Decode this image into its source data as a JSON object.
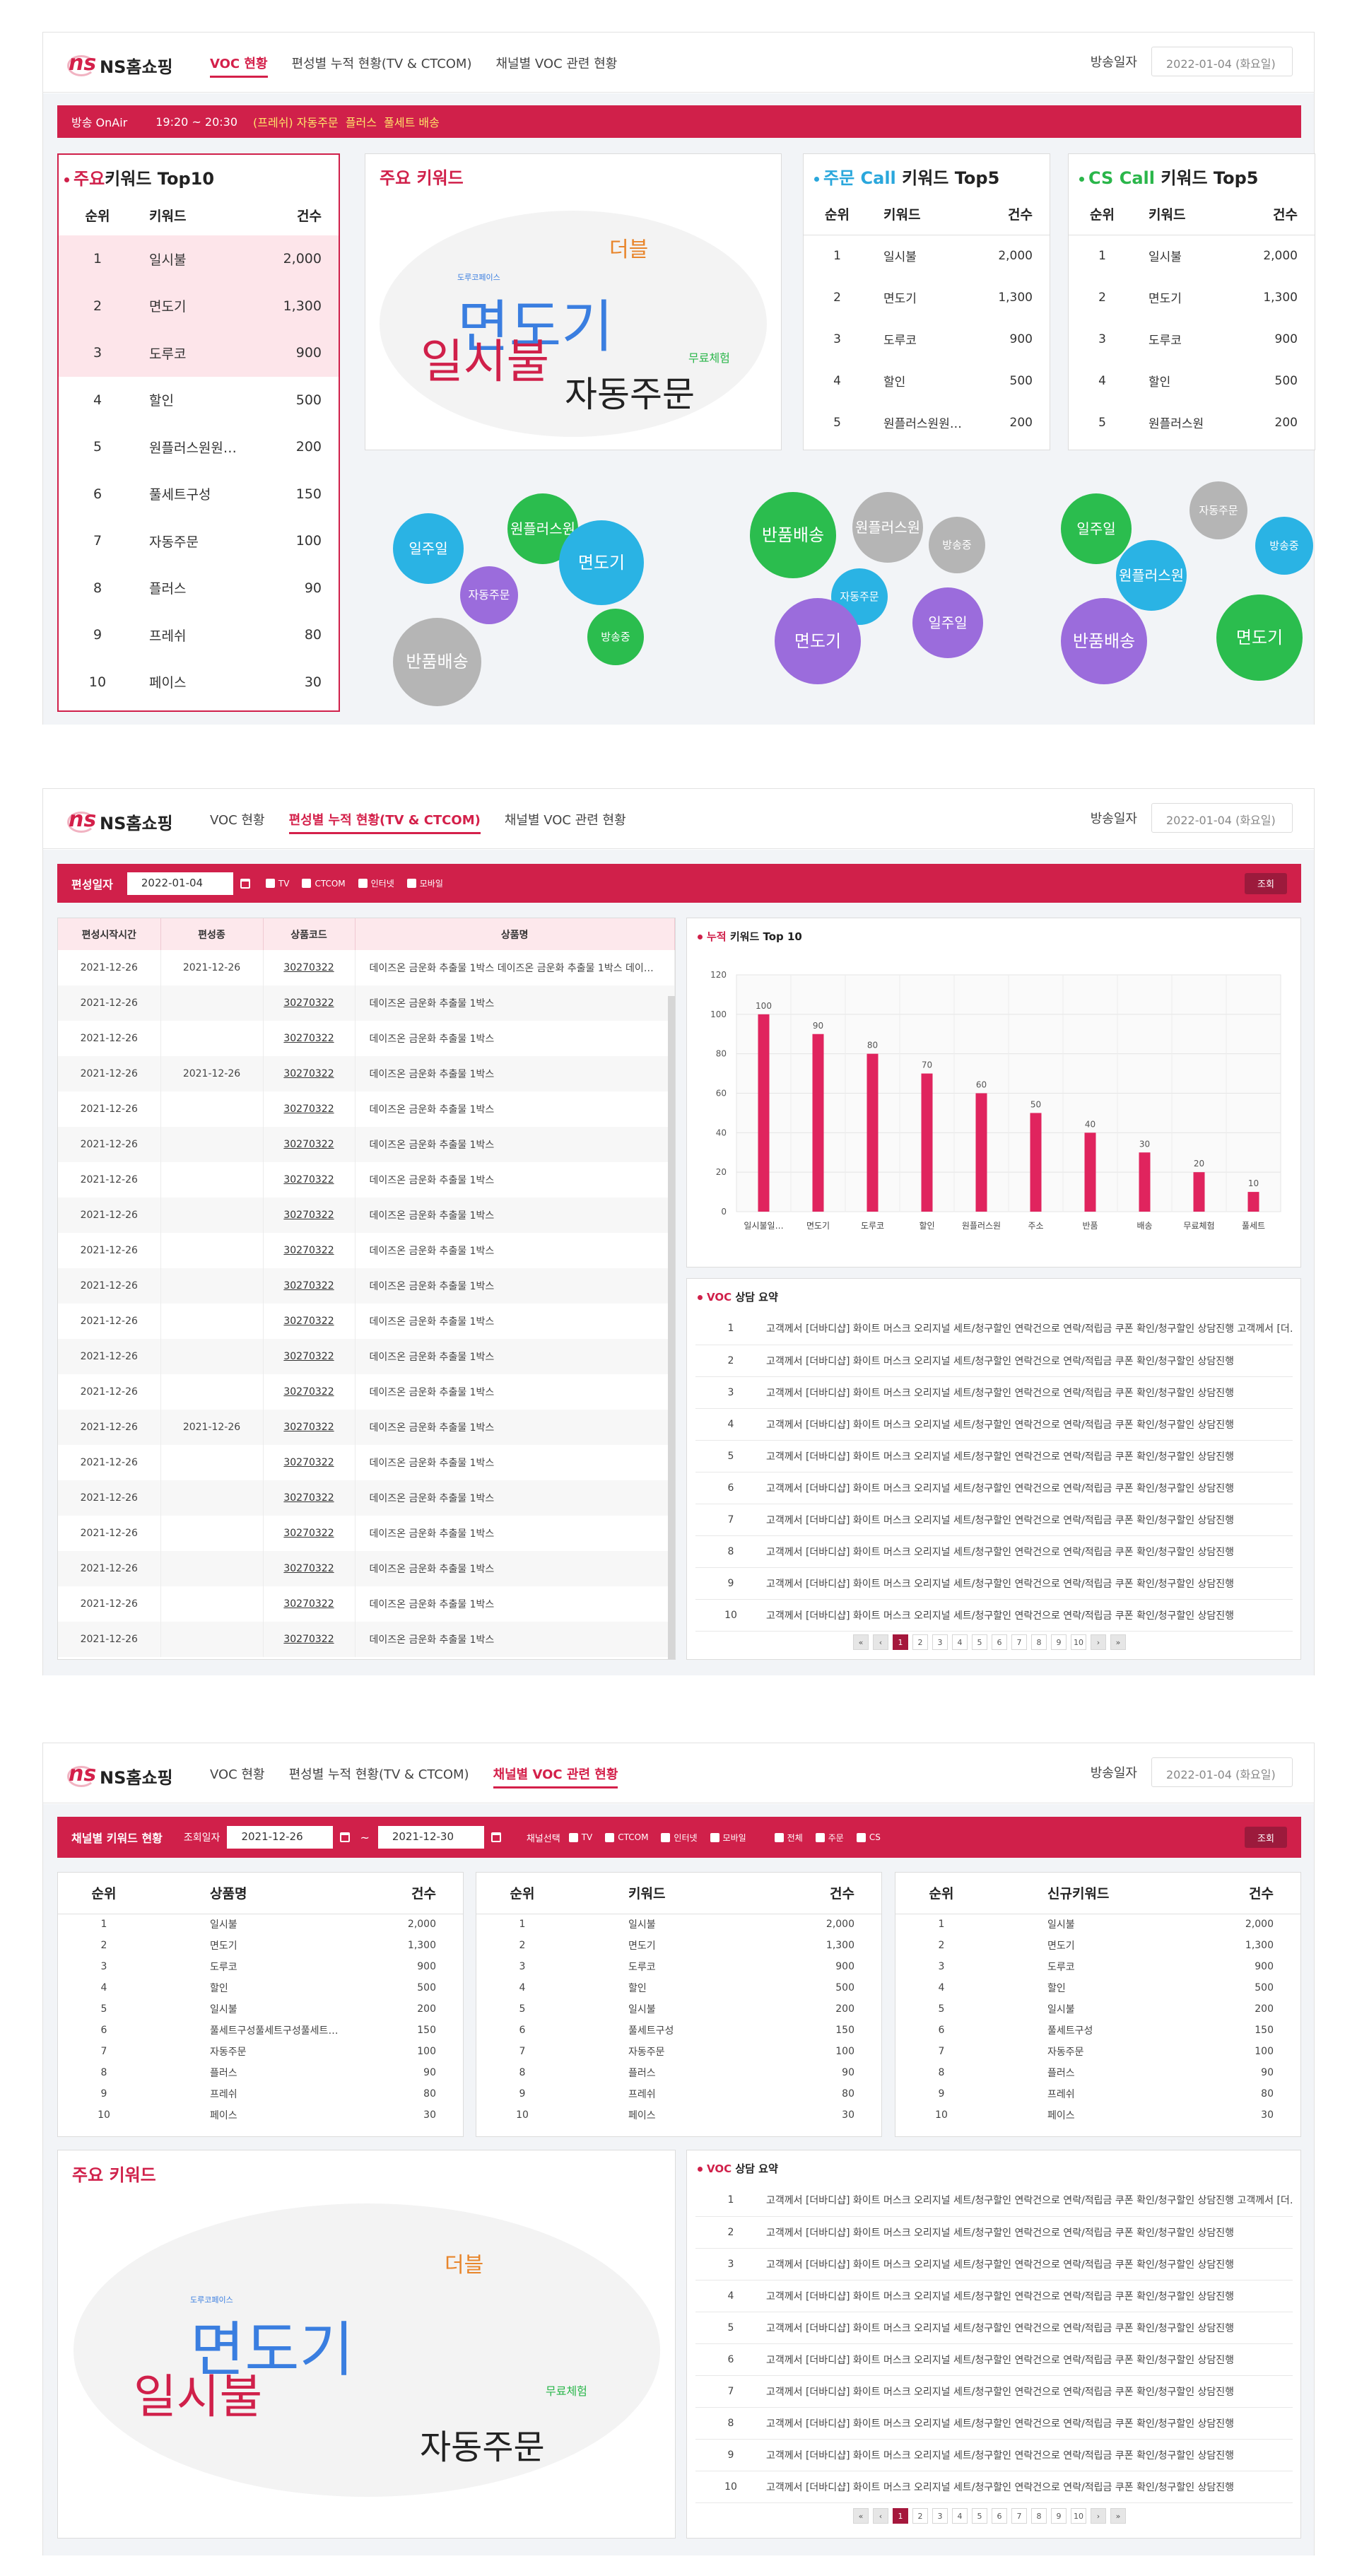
{
  "brand": {
    "name": "NS홈쇼핑",
    "mark": "ns"
  },
  "nav": [
    "VOC 현황",
    "편성별 누적 현황(TV & CTCOM)",
    "채널별 VOC 관련 현황"
  ],
  "broadcast_date": {
    "label": "방송일자",
    "value": "2022-01-04 (화요일)"
  },
  "section1": {
    "onair": {
      "label": "방송 OnAir",
      "time": "19:20 ~ 20:30",
      "product": "(프레쉬) 자동주문  플러스  풀세트 배송"
    },
    "top10": {
      "title_a": "주요",
      "title_b": "키워드 Top10",
      "headers": [
        "순위",
        "키워드",
        "건수"
      ],
      "rows": [
        [
          "1",
          "일시불",
          "2,000"
        ],
        [
          "2",
          "면도기",
          "1,300"
        ],
        [
          "3",
          "도루코",
          "900"
        ],
        [
          "4",
          "할인",
          "500"
        ],
        [
          "5",
          "원플러스원원…",
          "200"
        ],
        [
          "6",
          "풀세트구성",
          "150"
        ],
        [
          "7",
          "자동주문",
          "100"
        ],
        [
          "8",
          "플러스",
          "90"
        ],
        [
          "9",
          "프레쉬",
          "80"
        ],
        [
          "10",
          "페이스",
          "30"
        ]
      ]
    },
    "cloud": {
      "title": "주요 키워드",
      "words": [
        "면도기",
        "일시불",
        "자동주문",
        "더블",
        "무료체험",
        "도루코페이스"
      ]
    },
    "call": {
      "title_a": "주문 Call",
      "title_b": "키워드 Top5",
      "headers": [
        "순위",
        "키워드",
        "건수"
      ],
      "rows": [
        [
          "1",
          "일시불",
          "2,000"
        ],
        [
          "2",
          "면도기",
          "1,300"
        ],
        [
          "3",
          "도루코",
          "900"
        ],
        [
          "4",
          "할인",
          "500"
        ],
        [
          "5",
          "원플러스원원…",
          "200"
        ]
      ]
    },
    "cs": {
      "title_a": "CS Call",
      "title_b": "키워드 Top5",
      "headers": [
        "순위",
        "키워드",
        "건수"
      ],
      "rows": [
        [
          "1",
          "일시불",
          "2,000"
        ],
        [
          "2",
          "면도기",
          "1,300"
        ],
        [
          "3",
          "도루코",
          "900"
        ],
        [
          "4",
          "할인",
          "500"
        ],
        [
          "5",
          "원플러스원",
          "200"
        ]
      ]
    },
    "bubbles1": [
      "일주일",
      "원플러스원",
      "면도기",
      "자동주문",
      "방송중",
      "반품배송"
    ],
    "bubbles2": [
      "반품배송",
      "원플러스원",
      "방송중",
      "자동주문",
      "일주일",
      "면도기"
    ],
    "bubbles3": [
      "자동주문",
      "방송중",
      "일주일",
      "원플러스원",
      "반품배송",
      "면도기"
    ]
  },
  "section2": {
    "filter": {
      "label": "편성일자",
      "date": "2022-01-04",
      "options": [
        "TV",
        "CTCOM",
        "인터넷",
        "모바일"
      ],
      "search": "조회"
    },
    "grid": {
      "headers": [
        "편성시작시간",
        "편성종",
        "상품코드",
        "상품명"
      ],
      "rows": [
        [
          "2021-12-26",
          "2021-12-26",
          "30270322",
          "데이즈온 금운화 추출물 1박스 데이즈온 금운화 추출물 1박스 데이…"
        ],
        [
          "2021-12-26",
          "",
          "30270322",
          "데이즈온 금운화 추출물 1박스"
        ],
        [
          "2021-12-26",
          "",
          "30270322",
          "데이즈온 금운화 추출물 1박스"
        ],
        [
          "2021-12-26",
          "2021-12-26",
          "30270322",
          "데이즈온 금운화 추출물 1박스"
        ],
        [
          "2021-12-26",
          "",
          "30270322",
          "데이즈온 금운화 추출물 1박스"
        ],
        [
          "2021-12-26",
          "",
          "30270322",
          "데이즈온 금운화 추출물 1박스"
        ],
        [
          "2021-12-26",
          "",
          "30270322",
          "데이즈온 금운화 추출물 1박스"
        ],
        [
          "2021-12-26",
          "",
          "30270322",
          "데이즈온 금운화 추출물 1박스"
        ],
        [
          "2021-12-26",
          "",
          "30270322",
          "데이즈온 금운화 추출물 1박스"
        ],
        [
          "2021-12-26",
          "",
          "30270322",
          "데이즈온 금운화 추출물 1박스"
        ],
        [
          "2021-12-26",
          "",
          "30270322",
          "데이즈온 금운화 추출물 1박스"
        ],
        [
          "2021-12-26",
          "",
          "30270322",
          "데이즈온 금운화 추출물 1박스"
        ],
        [
          "2021-12-26",
          "",
          "30270322",
          "데이즈온 금운화 추출물 1박스"
        ],
        [
          "2021-12-26",
          "2021-12-26",
          "30270322",
          "데이즈온 금운화 추출물 1박스"
        ],
        [
          "2021-12-26",
          "",
          "30270322",
          "데이즈온 금운화 추출물 1박스"
        ],
        [
          "2021-12-26",
          "",
          "30270322",
          "데이즈온 금운화 추출물 1박스"
        ],
        [
          "2021-12-26",
          "",
          "30270322",
          "데이즈온 금운화 추출물 1박스"
        ],
        [
          "2021-12-26",
          "",
          "30270322",
          "데이즈온 금운화 추출물 1박스"
        ],
        [
          "2021-12-26",
          "",
          "30270322",
          "데이즈온 금운화 추출물 1박스"
        ],
        [
          "2021-12-26",
          "",
          "30270322",
          "데이즈온 금운화 추출물 1박스"
        ]
      ]
    },
    "chart_title_a": "누적",
    "chart_title_b": "키워드 Top 10",
    "voc_title_a": "VOC",
    "voc_title_b": "상담 요약",
    "voc_first": "고객께서 [더바디샵] 화이트 머스크 오리지널 세트/청구할인 연락건으로 연락/적립금 쿠폰 확인/청구할인 상담진행 고객께서 [더…",
    "voc_text": "고객께서 [더바디샵] 화이트 머스크 오리지널 세트/청구할인 연락건으로 연락/적립금 쿠폰 확인/청구할인 상담진행",
    "pager": [
      "«",
      "‹",
      "1",
      "2",
      "3",
      "4",
      "5",
      "6",
      "7",
      "8",
      "9",
      "10",
      "›",
      "»"
    ]
  },
  "chart_data": {
    "type": "bar",
    "title": "누적 키워드 Top 10",
    "categories": [
      "일시불일…",
      "면도기",
      "도루코",
      "할인",
      "원플러스원",
      "주소",
      "반품",
      "배송",
      "무료체험",
      "풀세트"
    ],
    "values": [
      100,
      90,
      80,
      70,
      60,
      50,
      40,
      30,
      20,
      10
    ],
    "ylim": [
      0,
      120
    ],
    "yticks": [
      0,
      20,
      40,
      60,
      80,
      100,
      120
    ],
    "color": "#e0245e"
  },
  "section3": {
    "bar_title": "채널별 키워드 현황",
    "period_label": "조회일자",
    "from": "2021-12-26",
    "tilde": "~",
    "to": "2021-12-30",
    "channel_label": "채널선택",
    "channels": [
      "TV",
      "CTCOM",
      "인터넷",
      "모바일"
    ],
    "kinds": [
      "전체",
      "주문",
      "CS"
    ],
    "search": "조회",
    "t1": {
      "headers": [
        "순위",
        "상품명",
        "건수"
      ],
      "rows": [
        [
          "1",
          "일시불",
          "2,000"
        ],
        [
          "2",
          "면도기",
          "1,300"
        ],
        [
          "3",
          "도루코",
          "900"
        ],
        [
          "4",
          "할인",
          "500"
        ],
        [
          "5",
          "일시불",
          "200"
        ],
        [
          "6",
          "풀세트구성풀세트구성풀세트…",
          "150"
        ],
        [
          "7",
          "자동주문",
          "100"
        ],
        [
          "8",
          "플러스",
          "90"
        ],
        [
          "9",
          "프레쉬",
          "80"
        ],
        [
          "10",
          "페이스",
          "30"
        ]
      ]
    },
    "t2": {
      "headers": [
        "순위",
        "키워드",
        "건수"
      ],
      "rows": [
        [
          "1",
          "일시불",
          "2,000"
        ],
        [
          "2",
          "면도기",
          "1,300"
        ],
        [
          "3",
          "도루코",
          "900"
        ],
        [
          "4",
          "할인",
          "500"
        ],
        [
          "5",
          "일시불",
          "200"
        ],
        [
          "6",
          "풀세트구성",
          "150"
        ],
        [
          "7",
          "자동주문",
          "100"
        ],
        [
          "8",
          "플러스",
          "90"
        ],
        [
          "9",
          "프레쉬",
          "80"
        ],
        [
          "10",
          "페이스",
          "30"
        ]
      ]
    },
    "t3": {
      "headers": [
        "순위",
        "신규키워드",
        "건수"
      ],
      "rows": [
        [
          "1",
          "일시불",
          "2,000"
        ],
        [
          "2",
          "면도기",
          "1,300"
        ],
        [
          "3",
          "도루코",
          "900"
        ],
        [
          "4",
          "할인",
          "500"
        ],
        [
          "5",
          "일시불",
          "200"
        ],
        [
          "6",
          "풀세트구성",
          "150"
        ],
        [
          "7",
          "자동주문",
          "100"
        ],
        [
          "8",
          "플러스",
          "90"
        ],
        [
          "9",
          "프레쉬",
          "80"
        ],
        [
          "10",
          "페이스",
          "30"
        ]
      ]
    },
    "cloud_title": "주요 키워드"
  },
  "colors": {
    "accent": "#d0204a",
    "dark_accent": "#a5173c",
    "blue": "#2aa7dc",
    "green": "#2ab64a",
    "purple": "#9b6cdc",
    "gray": "#b5b5b5",
    "word_blue": "#3a7ee0",
    "word_orange": "#e8852b"
  }
}
